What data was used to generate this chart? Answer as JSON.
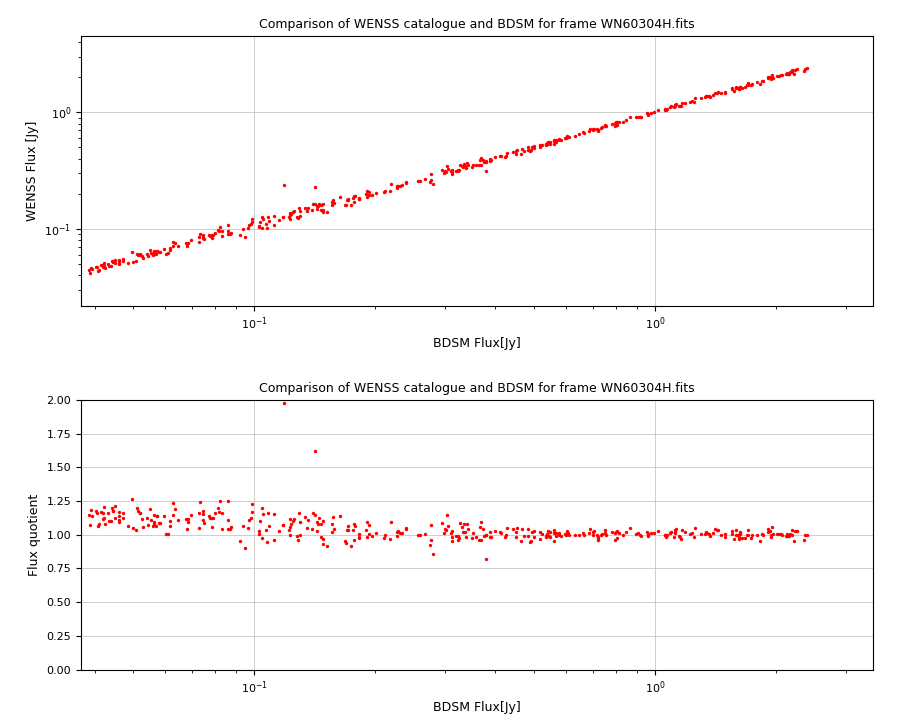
{
  "title": "Comparison of WENSS catalogue and BDSM for frame WN60304H.fits",
  "xlabel1": "BDSM Flux[Jy]",
  "ylabel1": "WENSS Flux [Jy]",
  "xlabel2": "BDSM Flux[Jy]",
  "ylabel2": "Flux quotient",
  "dot_color": "#ff0000",
  "dot_size": 6,
  "background_color": "#ffffff",
  "grid_color": "#bbbbbb",
  "xlim1": [
    0.037,
    3.5
  ],
  "ylim1": [
    0.022,
    4.5
  ],
  "xlim2": [
    0.037,
    3.5
  ],
  "ylim2": [
    0.0,
    2.0
  ],
  "seed": 42,
  "title_fontsize": 9,
  "label_fontsize": 9,
  "tick_fontsize": 8
}
